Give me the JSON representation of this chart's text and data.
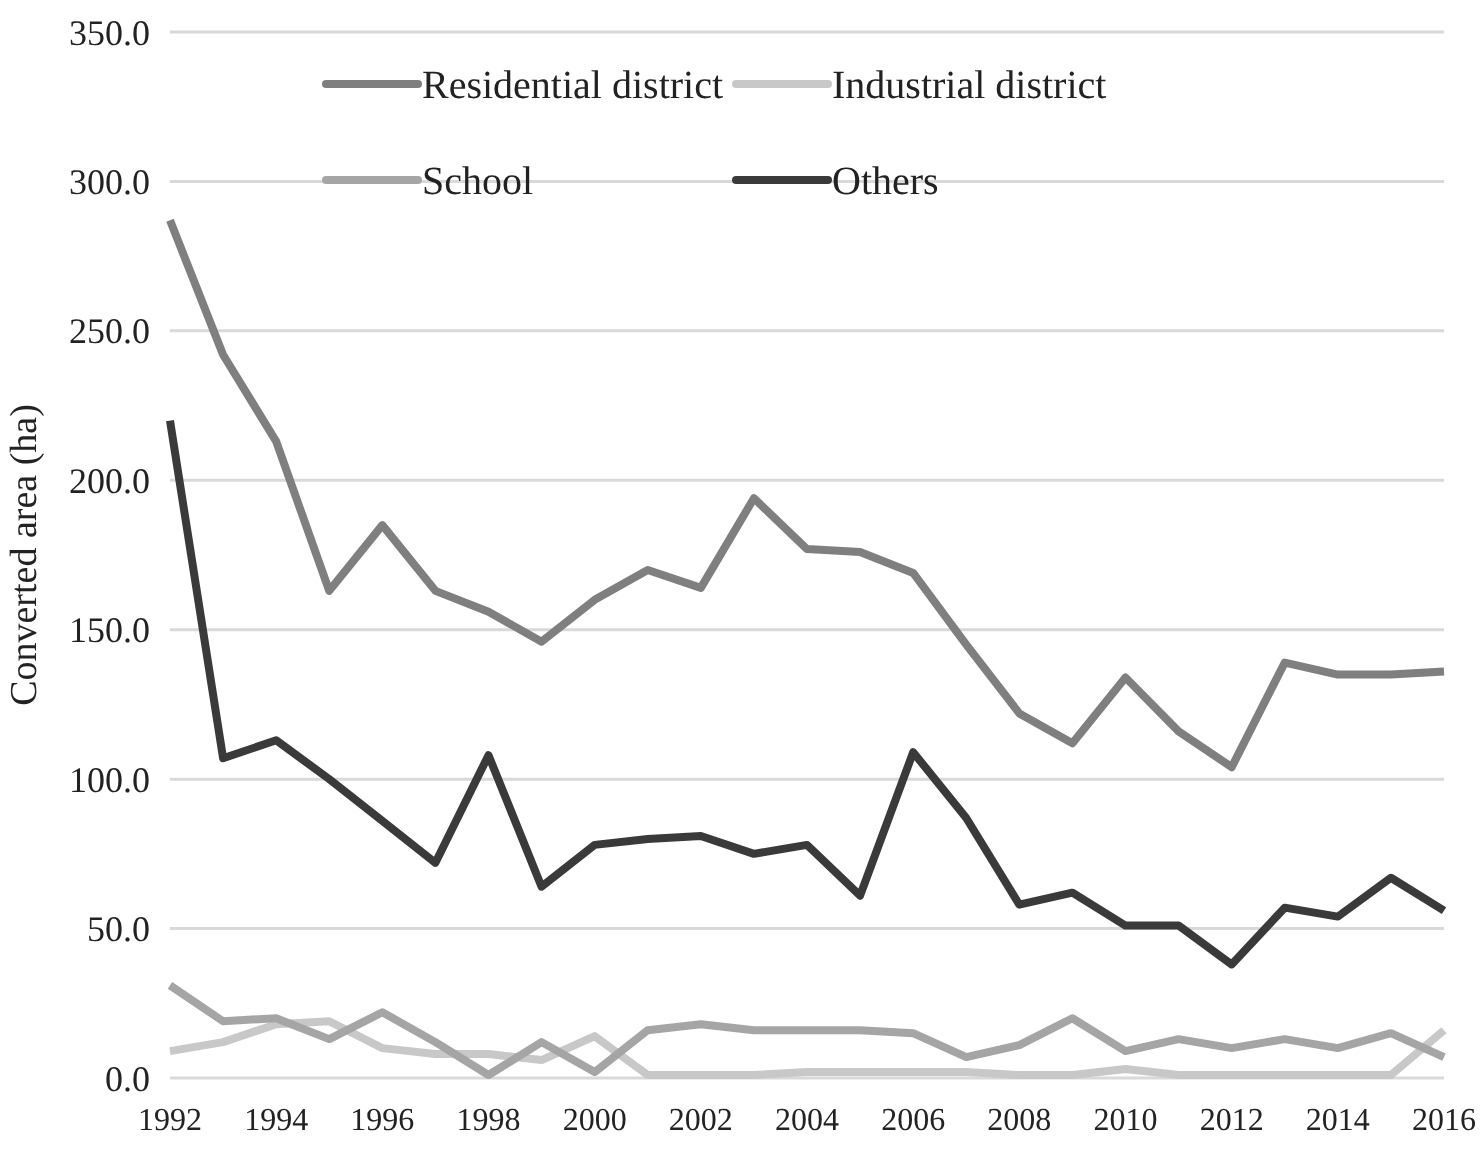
{
  "chart_data": {
    "type": "line",
    "ylabel": "Converted area (ha)",
    "x": [
      1992,
      1993,
      1994,
      1995,
      1996,
      1997,
      1998,
      1999,
      2000,
      2001,
      2002,
      2003,
      2004,
      2005,
      2006,
      2007,
      2008,
      2009,
      2010,
      2011,
      2012,
      2013,
      2014,
      2015,
      2016
    ],
    "xlim": [
      1992,
      2016
    ],
    "xticks": [
      1992,
      1994,
      1996,
      1998,
      2000,
      2002,
      2004,
      2006,
      2008,
      2010,
      2012,
      2014,
      2016
    ],
    "ylim": [
      0,
      350
    ],
    "yticks": [
      {
        "value": 0,
        "label": "0.0"
      },
      {
        "value": 50,
        "label": "50.0"
      },
      {
        "value": 100,
        "label": "100.0"
      },
      {
        "value": 150,
        "label": "150.0"
      },
      {
        "value": 200,
        "label": "200.0"
      },
      {
        "value": 250,
        "label": "250.0"
      },
      {
        "value": 300,
        "label": "300.0"
      },
      {
        "value": 350,
        "label": "350.0"
      }
    ],
    "grid": "y",
    "legend": "top",
    "marker": "none",
    "line_style": "solid",
    "series": [
      {
        "name": "Residential district",
        "color": "#7f7f7f",
        "values": [
          287,
          242,
          213,
          163,
          185,
          163,
          156,
          146,
          160,
          170,
          164,
          194,
          177,
          176,
          169,
          145,
          122,
          112,
          134,
          116,
          104,
          139,
          135,
          135,
          136
        ]
      },
      {
        "name": "Industrial district",
        "color": "#c8c8c8",
        "values": [
          9,
          12,
          18,
          19,
          10,
          8,
          8,
          6,
          14,
          1,
          1,
          1,
          2,
          2,
          2,
          2,
          1,
          1,
          3,
          1,
          1,
          1,
          1,
          1,
          16
        ]
      },
      {
        "name": "School",
        "color": "#a5a5a5",
        "values": [
          31,
          19,
          20,
          13,
          22,
          12,
          1,
          12,
          2,
          16,
          18,
          16,
          16,
          16,
          15,
          7,
          11,
          20,
          9,
          13,
          10,
          13,
          10,
          15,
          7
        ]
      },
      {
        "name": "Others",
        "color": "#3a3a3a",
        "values": [
          220,
          107,
          113,
          100,
          86,
          72,
          108,
          64,
          78,
          80,
          81,
          75,
          78,
          61,
          109,
          87,
          58,
          62,
          51,
          51,
          38,
          57,
          54,
          67,
          56
        ]
      }
    ]
  }
}
